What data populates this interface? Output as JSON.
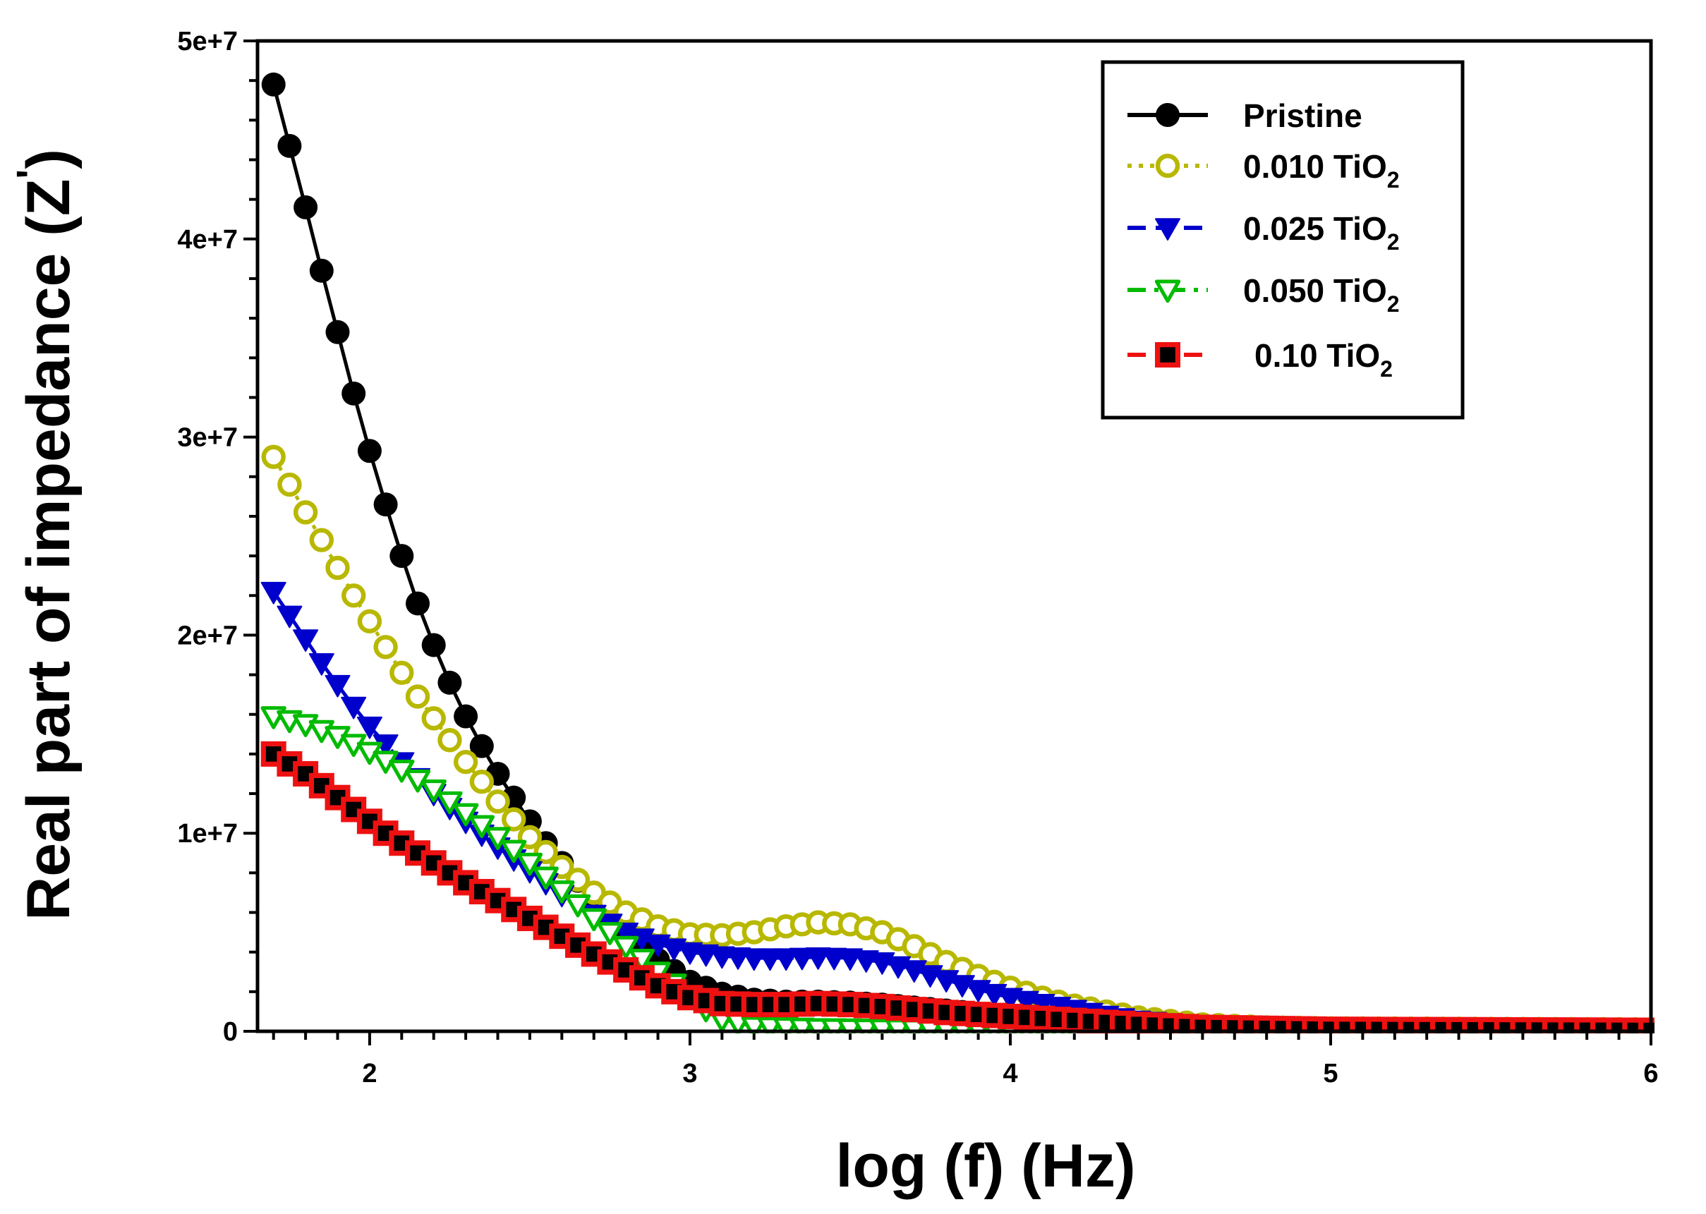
{
  "chart_data": {
    "type": "scatter",
    "title": "",
    "xlabel": "log (f) (Hz)",
    "ylabel_main": "Real part of impedance (Z",
    "ylabel_prime": "'",
    "ylabel_close": ")",
    "xlim": [
      1.65,
      6.0
    ],
    "ylim": [
      0,
      50000000
    ],
    "x_ticks": [
      2,
      3,
      4,
      5,
      6
    ],
    "x_tick_labels": [
      "2",
      "3",
      "4",
      "5",
      "6"
    ],
    "y_ticks": [
      0,
      10000000,
      20000000,
      30000000,
      40000000,
      50000000
    ],
    "y_tick_labels": [
      "0",
      "1e+7",
      "2e+7",
      "3e+7",
      "4e+7",
      "5e+7"
    ],
    "x_start": 1.7,
    "x_step": 0.05,
    "x_points": 87,
    "legend_position": "top-right",
    "series": [
      {
        "name": "Pristine",
        "label_main": "Pristine",
        "label_sub": "",
        "color": "#000000",
        "marker": "circle-filled",
        "line": "solid",
        "anchors": [
          [
            1.7,
            47800000
          ],
          [
            1.75,
            44700000
          ],
          [
            1.8,
            41600000
          ],
          [
            1.85,
            38400000
          ],
          [
            1.9,
            35300000
          ],
          [
            1.95,
            32200000
          ],
          [
            2.0,
            29300000
          ],
          [
            2.05,
            26600000
          ],
          [
            2.1,
            24000000
          ],
          [
            2.15,
            21600000
          ],
          [
            2.2,
            19500000
          ],
          [
            2.25,
            17600000
          ],
          [
            2.3,
            15900000
          ],
          [
            2.35,
            14400000
          ],
          [
            2.4,
            13000000
          ],
          [
            2.45,
            11800000
          ],
          [
            2.5,
            10600000
          ],
          [
            2.55,
            9500000
          ],
          [
            2.6,
            8500000
          ],
          [
            2.65,
            7600000
          ],
          [
            2.7,
            6700000
          ],
          [
            2.8,
            5000000
          ],
          [
            2.9,
            3600000
          ],
          [
            3.0,
            2500000
          ],
          [
            3.1,
            1900000
          ],
          [
            3.2,
            1600000
          ],
          [
            3.3,
            1500000
          ],
          [
            3.4,
            1500000
          ],
          [
            3.5,
            1450000
          ],
          [
            3.6,
            1350000
          ],
          [
            3.7,
            1200000
          ],
          [
            3.8,
            1050000
          ],
          [
            3.9,
            900000
          ],
          [
            4.0,
            750000
          ],
          [
            4.2,
            500000
          ],
          [
            4.4,
            300000
          ],
          [
            4.6,
            180000
          ],
          [
            5.0,
            100000
          ],
          [
            6.0,
            50000
          ]
        ]
      },
      {
        "name": "0.010 TiO2",
        "label_main": "0.010 TiO",
        "label_sub": "2",
        "color": "#b8b800",
        "marker": "circle-open",
        "line": "dotted",
        "anchors": [
          [
            1.7,
            29000000
          ],
          [
            1.75,
            27600000
          ],
          [
            1.8,
            26200000
          ],
          [
            1.85,
            24800000
          ],
          [
            1.9,
            23400000
          ],
          [
            1.95,
            22000000
          ],
          [
            2.0,
            20700000
          ],
          [
            2.05,
            19400000
          ],
          [
            2.1,
            18100000
          ],
          [
            2.15,
            16900000
          ],
          [
            2.2,
            15800000
          ],
          [
            2.25,
            14700000
          ],
          [
            2.3,
            13600000
          ],
          [
            2.35,
            12600000
          ],
          [
            2.4,
            11600000
          ],
          [
            2.45,
            10700000
          ],
          [
            2.5,
            9800000
          ],
          [
            2.6,
            8300000
          ],
          [
            2.7,
            7000000
          ],
          [
            2.8,
            6000000
          ],
          [
            2.9,
            5300000
          ],
          [
            3.0,
            4900000
          ],
          [
            3.1,
            4850000
          ],
          [
            3.2,
            5000000
          ],
          [
            3.3,
            5300000
          ],
          [
            3.4,
            5500000
          ],
          [
            3.5,
            5400000
          ],
          [
            3.6,
            5000000
          ],
          [
            3.7,
            4300000
          ],
          [
            3.8,
            3500000
          ],
          [
            3.9,
            2800000
          ],
          [
            4.0,
            2200000
          ],
          [
            4.1,
            1700000
          ],
          [
            4.2,
            1300000
          ],
          [
            4.3,
            1000000
          ],
          [
            4.4,
            700000
          ],
          [
            4.6,
            350000
          ],
          [
            4.8,
            200000
          ],
          [
            5.0,
            150000
          ],
          [
            6.0,
            100000
          ]
        ]
      },
      {
        "name": "0.025 TiO2",
        "label_main": "0.025 TiO",
        "label_sub": "2",
        "color": "#0000cc",
        "marker": "triangle-down-filled",
        "line": "dashed",
        "anchors": [
          [
            1.7,
            22200000
          ],
          [
            1.75,
            21000000
          ],
          [
            1.8,
            19800000
          ],
          [
            1.85,
            18600000
          ],
          [
            1.9,
            17500000
          ],
          [
            1.95,
            16400000
          ],
          [
            2.0,
            15400000
          ],
          [
            2.05,
            14500000
          ],
          [
            2.1,
            13600000
          ],
          [
            2.2,
            12000000
          ],
          [
            2.3,
            10600000
          ],
          [
            2.4,
            9300000
          ],
          [
            2.5,
            8100000
          ],
          [
            2.6,
            6900000
          ],
          [
            2.7,
            5900000
          ],
          [
            2.8,
            5000000
          ],
          [
            2.9,
            4400000
          ],
          [
            3.0,
            4000000
          ],
          [
            3.1,
            3800000
          ],
          [
            3.2,
            3700000
          ],
          [
            3.3,
            3700000
          ],
          [
            3.4,
            3750000
          ],
          [
            3.5,
            3700000
          ],
          [
            3.6,
            3500000
          ],
          [
            3.7,
            3100000
          ],
          [
            3.8,
            2600000
          ],
          [
            3.9,
            2100000
          ],
          [
            4.0,
            1700000
          ],
          [
            4.1,
            1400000
          ],
          [
            4.2,
            1100000
          ],
          [
            4.3,
            800000
          ],
          [
            4.4,
            550000
          ],
          [
            4.6,
            300000
          ],
          [
            5.0,
            150000
          ],
          [
            6.0,
            80000
          ]
        ]
      },
      {
        "name": "0.050 TiO2",
        "label_main": "0.050 TiO",
        "label_sub": "2",
        "color": "#00bb00",
        "marker": "triangle-down-open",
        "line": "dash-dot",
        "anchors": [
          [
            1.7,
            15900000
          ],
          [
            1.75,
            15700000
          ],
          [
            1.8,
            15500000
          ],
          [
            1.85,
            15200000
          ],
          [
            1.9,
            14900000
          ],
          [
            1.95,
            14500000
          ],
          [
            2.0,
            14100000
          ],
          [
            2.1,
            13200000
          ],
          [
            2.2,
            12200000
          ],
          [
            2.3,
            11000000
          ],
          [
            2.4,
            9800000
          ],
          [
            2.5,
            8500000
          ],
          [
            2.6,
            7100000
          ],
          [
            2.7,
            5700000
          ],
          [
            2.8,
            4300000
          ],
          [
            2.9,
            3000000
          ],
          [
            3.0,
            1800000
          ],
          [
            3.05,
            1100000
          ],
          [
            3.1,
            600000
          ],
          [
            3.2,
            250000
          ],
          [
            3.4,
            150000
          ],
          [
            3.6,
            120000
          ],
          [
            3.8,
            100000
          ],
          [
            4.0,
            80000
          ],
          [
            4.3,
            60000
          ],
          [
            4.5,
            50000
          ],
          [
            5.0,
            30000
          ],
          [
            6.0,
            20000
          ]
        ]
      },
      {
        "name": "0.10 TiO2",
        "label_main": "0.10 TiO",
        "label_sub": "2",
        "color": "#ee1111",
        "marker": "square-filled-dot",
        "line": "dashed",
        "anchors": [
          [
            1.7,
            14000000
          ],
          [
            1.75,
            13500000
          ],
          [
            1.8,
            13000000
          ],
          [
            1.85,
            12400000
          ],
          [
            1.9,
            11800000
          ],
          [
            1.95,
            11200000
          ],
          [
            2.0,
            10600000
          ],
          [
            2.05,
            10000000
          ],
          [
            2.1,
            9500000
          ],
          [
            2.2,
            8500000
          ],
          [
            2.3,
            7500000
          ],
          [
            2.4,
            6600000
          ],
          [
            2.5,
            5700000
          ],
          [
            2.6,
            4800000
          ],
          [
            2.7,
            3900000
          ],
          [
            2.8,
            3100000
          ],
          [
            2.9,
            2300000
          ],
          [
            3.0,
            1700000
          ],
          [
            3.1,
            1400000
          ],
          [
            3.2,
            1350000
          ],
          [
            3.3,
            1350000
          ],
          [
            3.4,
            1400000
          ],
          [
            3.5,
            1350000
          ],
          [
            3.6,
            1250000
          ],
          [
            3.7,
            1100000
          ],
          [
            3.8,
            950000
          ],
          [
            3.9,
            850000
          ],
          [
            4.0,
            750000
          ],
          [
            4.2,
            550000
          ],
          [
            4.4,
            350000
          ],
          [
            4.6,
            200000
          ],
          [
            5.0,
            100000
          ],
          [
            6.0,
            50000
          ]
        ]
      }
    ]
  }
}
